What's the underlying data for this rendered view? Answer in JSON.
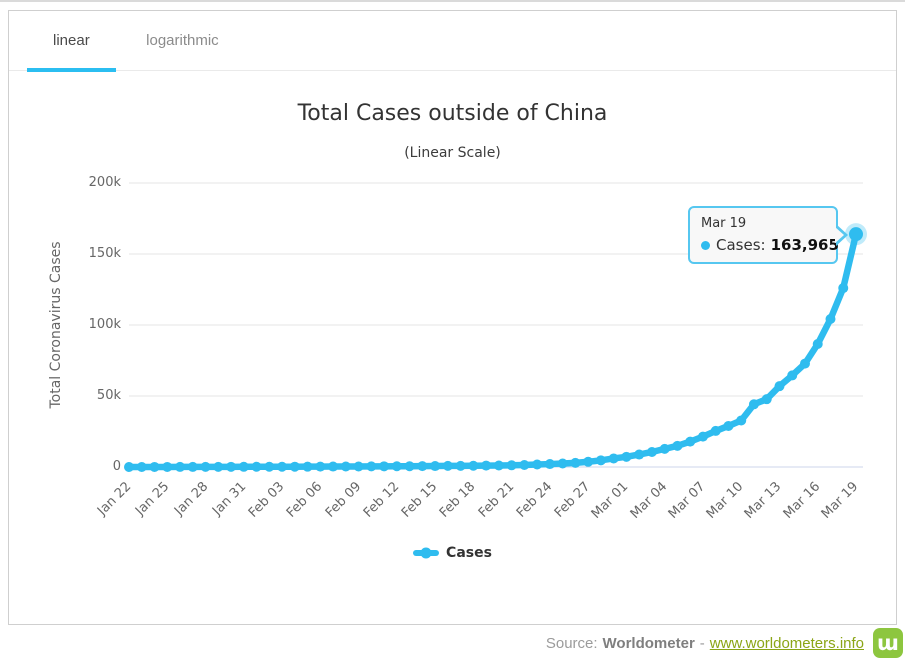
{
  "tabs": [
    {
      "label": "linear",
      "active": true
    },
    {
      "label": "logarithmic",
      "active": false
    }
  ],
  "colors": {
    "accent_tab": "#2bbef1",
    "series_blue": "#2fbcef",
    "grid": "#e6e6e6",
    "axis_line": "#ccd6eb",
    "tooltip_border": "#56c7f0",
    "logo_green": "#8dc63f",
    "link_green": "#8ba516"
  },
  "chart_data": {
    "type": "line",
    "title": "Total Cases outside of China",
    "subtitle": "(Linear Scale)",
    "xlabel": "",
    "ylabel": "Total Coronavirus Cases",
    "ylim": [
      0,
      200000
    ],
    "grid": true,
    "legend_position": "bottom",
    "x_tick_every": 3,
    "yticks": [
      {
        "value": 0,
        "label": "0"
      },
      {
        "value": 50000,
        "label": "50k"
      },
      {
        "value": 100000,
        "label": "100k"
      },
      {
        "value": 150000,
        "label": "150k"
      },
      {
        "value": 200000,
        "label": "200k"
      }
    ],
    "series": [
      {
        "name": "Cases",
        "color": "#2fbcef",
        "x": [
          "Jan 22",
          "Jan 23",
          "Jan 24",
          "Jan 25",
          "Jan 26",
          "Jan 27",
          "Jan 28",
          "Jan 29",
          "Jan 30",
          "Jan 31",
          "Feb 01",
          "Feb 02",
          "Feb 03",
          "Feb 04",
          "Feb 05",
          "Feb 06",
          "Feb 07",
          "Feb 08",
          "Feb 09",
          "Feb 10",
          "Feb 11",
          "Feb 12",
          "Feb 13",
          "Feb 14",
          "Feb 15",
          "Feb 16",
          "Feb 17",
          "Feb 18",
          "Feb 19",
          "Feb 20",
          "Feb 21",
          "Feb 22",
          "Feb 23",
          "Feb 24",
          "Feb 25",
          "Feb 26",
          "Feb 27",
          "Feb 28",
          "Feb 29",
          "Mar 01",
          "Mar 02",
          "Mar 03",
          "Mar 04",
          "Mar 05",
          "Mar 06",
          "Mar 07",
          "Mar 08",
          "Mar 09",
          "Mar 10",
          "Mar 11",
          "Mar 12",
          "Mar 13",
          "Mar 14",
          "Mar 15",
          "Mar 16",
          "Mar 17",
          "Mar 18",
          "Mar 19"
        ],
        "values": [
          9,
          14,
          25,
          40,
          57,
          64,
          87,
          105,
          118,
          153,
          173,
          183,
          188,
          212,
          227,
          265,
          317,
          343,
          361,
          457,
          476,
          523,
          538,
          603,
          683,
          780,
          804,
          879,
          1000,
          1073,
          1200,
          1403,
          1769,
          2069,
          2459,
          2918,
          3664,
          4691,
          6009,
          7169,
          8774,
          10566,
          12747,
          14905,
          17873,
          21397,
          25404,
          28905,
          32778,
          44169,
          47756,
          56920,
          64486,
          72822,
          86630,
          104231,
          126036,
          163965
        ]
      }
    ]
  },
  "tooltip": {
    "title": "Mar 19",
    "series_label": "Cases:",
    "value": "163,965",
    "point_index": 57
  },
  "legend": {
    "label": "Cases"
  },
  "source": {
    "prefix": "Source:",
    "name": "Worldometer",
    "dash": "-",
    "link_text": "www.worldometers.info",
    "logo_glyph": "ɯ"
  }
}
